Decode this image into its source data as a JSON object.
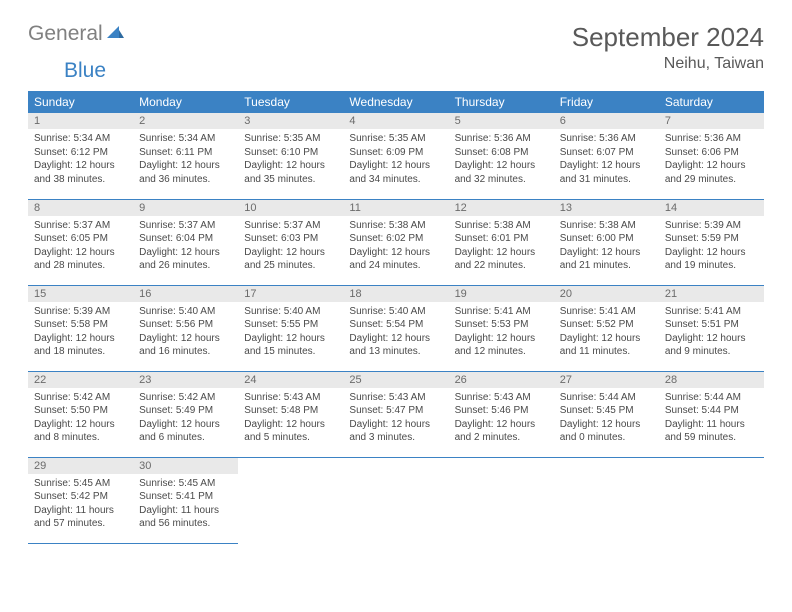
{
  "brand": {
    "part1": "General",
    "part2": "Blue"
  },
  "title": "September 2024",
  "location": "Neihu, Taiwan",
  "colors": {
    "header_bg": "#3b82c4",
    "header_text": "#ffffff",
    "daynum_bg": "#e9e9e9",
    "daynum_text": "#6b6b6b",
    "row_divider": "#3b82c4",
    "body_text": "#4a4a4a",
    "title_text": "#595959",
    "logo_gray": "#808080",
    "logo_blue": "#3b82c4",
    "page_bg": "#ffffff"
  },
  "typography": {
    "title_fontsize": 26,
    "location_fontsize": 16,
    "weekday_fontsize": 12,
    "daynum_fontsize": 11,
    "cell_fontsize": 10
  },
  "weekdays": [
    "Sunday",
    "Monday",
    "Tuesday",
    "Wednesday",
    "Thursday",
    "Friday",
    "Saturday"
  ],
  "days": [
    {
      "n": "1",
      "sunrise": "Sunrise: 5:34 AM",
      "sunset": "Sunset: 6:12 PM",
      "d1": "Daylight: 12 hours",
      "d2": "and 38 minutes."
    },
    {
      "n": "2",
      "sunrise": "Sunrise: 5:34 AM",
      "sunset": "Sunset: 6:11 PM",
      "d1": "Daylight: 12 hours",
      "d2": "and 36 minutes."
    },
    {
      "n": "3",
      "sunrise": "Sunrise: 5:35 AM",
      "sunset": "Sunset: 6:10 PM",
      "d1": "Daylight: 12 hours",
      "d2": "and 35 minutes."
    },
    {
      "n": "4",
      "sunrise": "Sunrise: 5:35 AM",
      "sunset": "Sunset: 6:09 PM",
      "d1": "Daylight: 12 hours",
      "d2": "and 34 minutes."
    },
    {
      "n": "5",
      "sunrise": "Sunrise: 5:36 AM",
      "sunset": "Sunset: 6:08 PM",
      "d1": "Daylight: 12 hours",
      "d2": "and 32 minutes."
    },
    {
      "n": "6",
      "sunrise": "Sunrise: 5:36 AM",
      "sunset": "Sunset: 6:07 PM",
      "d1": "Daylight: 12 hours",
      "d2": "and 31 minutes."
    },
    {
      "n": "7",
      "sunrise": "Sunrise: 5:36 AM",
      "sunset": "Sunset: 6:06 PM",
      "d1": "Daylight: 12 hours",
      "d2": "and 29 minutes."
    },
    {
      "n": "8",
      "sunrise": "Sunrise: 5:37 AM",
      "sunset": "Sunset: 6:05 PM",
      "d1": "Daylight: 12 hours",
      "d2": "and 28 minutes."
    },
    {
      "n": "9",
      "sunrise": "Sunrise: 5:37 AM",
      "sunset": "Sunset: 6:04 PM",
      "d1": "Daylight: 12 hours",
      "d2": "and 26 minutes."
    },
    {
      "n": "10",
      "sunrise": "Sunrise: 5:37 AM",
      "sunset": "Sunset: 6:03 PM",
      "d1": "Daylight: 12 hours",
      "d2": "and 25 minutes."
    },
    {
      "n": "11",
      "sunrise": "Sunrise: 5:38 AM",
      "sunset": "Sunset: 6:02 PM",
      "d1": "Daylight: 12 hours",
      "d2": "and 24 minutes."
    },
    {
      "n": "12",
      "sunrise": "Sunrise: 5:38 AM",
      "sunset": "Sunset: 6:01 PM",
      "d1": "Daylight: 12 hours",
      "d2": "and 22 minutes."
    },
    {
      "n": "13",
      "sunrise": "Sunrise: 5:38 AM",
      "sunset": "Sunset: 6:00 PM",
      "d1": "Daylight: 12 hours",
      "d2": "and 21 minutes."
    },
    {
      "n": "14",
      "sunrise": "Sunrise: 5:39 AM",
      "sunset": "Sunset: 5:59 PM",
      "d1": "Daylight: 12 hours",
      "d2": "and 19 minutes."
    },
    {
      "n": "15",
      "sunrise": "Sunrise: 5:39 AM",
      "sunset": "Sunset: 5:58 PM",
      "d1": "Daylight: 12 hours",
      "d2": "and 18 minutes."
    },
    {
      "n": "16",
      "sunrise": "Sunrise: 5:40 AM",
      "sunset": "Sunset: 5:56 PM",
      "d1": "Daylight: 12 hours",
      "d2": "and 16 minutes."
    },
    {
      "n": "17",
      "sunrise": "Sunrise: 5:40 AM",
      "sunset": "Sunset: 5:55 PM",
      "d1": "Daylight: 12 hours",
      "d2": "and 15 minutes."
    },
    {
      "n": "18",
      "sunrise": "Sunrise: 5:40 AM",
      "sunset": "Sunset: 5:54 PM",
      "d1": "Daylight: 12 hours",
      "d2": "and 13 minutes."
    },
    {
      "n": "19",
      "sunrise": "Sunrise: 5:41 AM",
      "sunset": "Sunset: 5:53 PM",
      "d1": "Daylight: 12 hours",
      "d2": "and 12 minutes."
    },
    {
      "n": "20",
      "sunrise": "Sunrise: 5:41 AM",
      "sunset": "Sunset: 5:52 PM",
      "d1": "Daylight: 12 hours",
      "d2": "and 11 minutes."
    },
    {
      "n": "21",
      "sunrise": "Sunrise: 5:41 AM",
      "sunset": "Sunset: 5:51 PM",
      "d1": "Daylight: 12 hours",
      "d2": "and 9 minutes."
    },
    {
      "n": "22",
      "sunrise": "Sunrise: 5:42 AM",
      "sunset": "Sunset: 5:50 PM",
      "d1": "Daylight: 12 hours",
      "d2": "and 8 minutes."
    },
    {
      "n": "23",
      "sunrise": "Sunrise: 5:42 AM",
      "sunset": "Sunset: 5:49 PM",
      "d1": "Daylight: 12 hours",
      "d2": "and 6 minutes."
    },
    {
      "n": "24",
      "sunrise": "Sunrise: 5:43 AM",
      "sunset": "Sunset: 5:48 PM",
      "d1": "Daylight: 12 hours",
      "d2": "and 5 minutes."
    },
    {
      "n": "25",
      "sunrise": "Sunrise: 5:43 AM",
      "sunset": "Sunset: 5:47 PM",
      "d1": "Daylight: 12 hours",
      "d2": "and 3 minutes."
    },
    {
      "n": "26",
      "sunrise": "Sunrise: 5:43 AM",
      "sunset": "Sunset: 5:46 PM",
      "d1": "Daylight: 12 hours",
      "d2": "and 2 minutes."
    },
    {
      "n": "27",
      "sunrise": "Sunrise: 5:44 AM",
      "sunset": "Sunset: 5:45 PM",
      "d1": "Daylight: 12 hours",
      "d2": "and 0 minutes."
    },
    {
      "n": "28",
      "sunrise": "Sunrise: 5:44 AM",
      "sunset": "Sunset: 5:44 PM",
      "d1": "Daylight: 11 hours",
      "d2": "and 59 minutes."
    },
    {
      "n": "29",
      "sunrise": "Sunrise: 5:45 AM",
      "sunset": "Sunset: 5:42 PM",
      "d1": "Daylight: 11 hours",
      "d2": "and 57 minutes."
    },
    {
      "n": "30",
      "sunrise": "Sunrise: 5:45 AM",
      "sunset": "Sunset: 5:41 PM",
      "d1": "Daylight: 11 hours",
      "d2": "and 56 minutes."
    }
  ]
}
